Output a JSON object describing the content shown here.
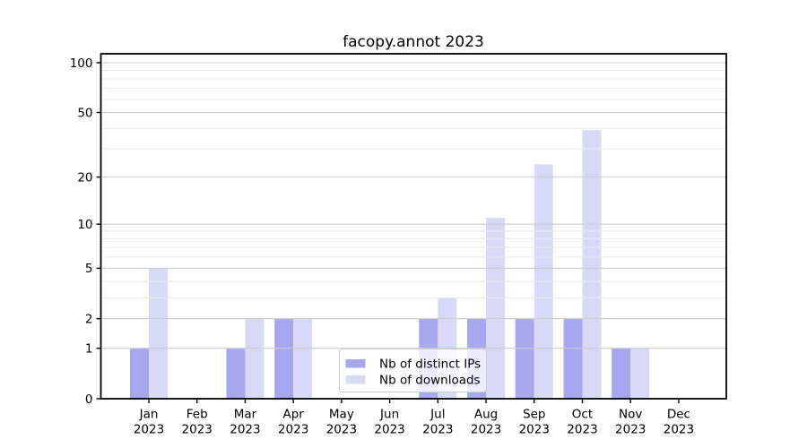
{
  "chart_data": {
    "type": "bar",
    "title": "facopy.annot 2023",
    "year": "2023",
    "categories": [
      "Jan",
      "Feb",
      "Mar",
      "Apr",
      "May",
      "Jun",
      "Jul",
      "Aug",
      "Sep",
      "Oct",
      "Nov",
      "Dec"
    ],
    "series": [
      {
        "name": "Nb of distinct IPs",
        "color": "#a7a7f0",
        "values": [
          1,
          0,
          1,
          2,
          0,
          0,
          2,
          2,
          2,
          2,
          1,
          0
        ]
      },
      {
        "name": "Nb of downloads",
        "color": "#d8d8f7",
        "values": [
          5,
          0,
          2,
          2,
          0,
          0,
          3,
          11,
          24,
          39,
          1,
          0
        ]
      }
    ],
    "yscale": "log1p",
    "ylabel": "",
    "xlabel": "",
    "y_major_ticks": [
      0,
      1,
      2,
      5,
      10,
      20,
      50,
      100
    ],
    "y_minor_ticks": [
      3,
      4,
      6,
      7,
      8,
      9,
      30,
      40,
      60,
      70,
      80,
      90
    ],
    "ylim": [
      0,
      113
    ],
    "grid": true,
    "legend_position": "lower-center",
    "colors": {
      "major_grid": "#cccccc",
      "minor_grid": "#eaeaea",
      "spine": "#000000",
      "text": "#000000",
      "legend_border": "#cccccc"
    }
  }
}
